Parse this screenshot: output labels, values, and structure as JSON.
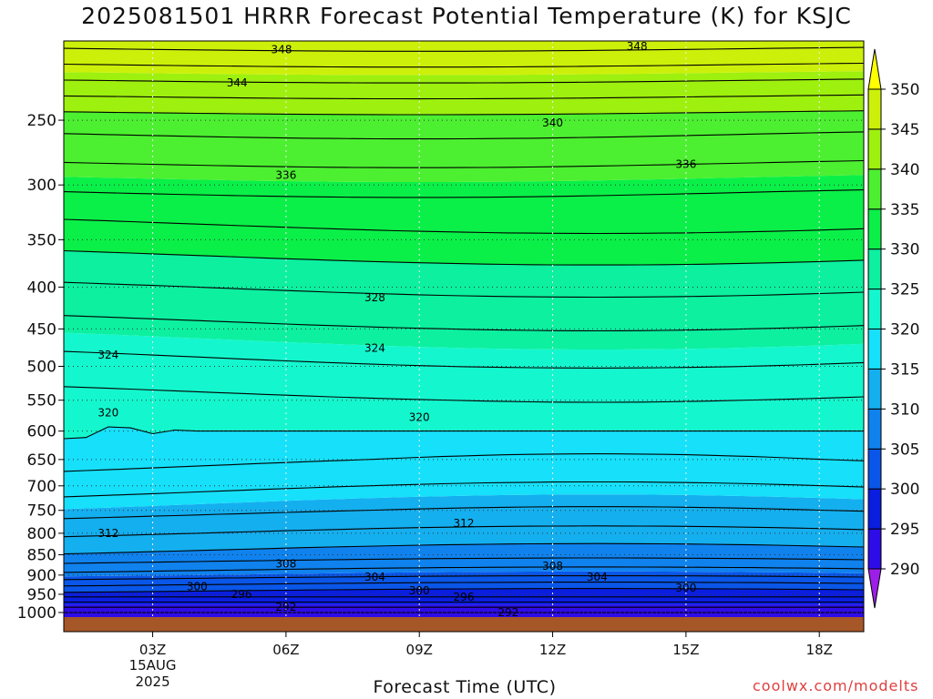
{
  "chart_data": {
    "type": "heatmap",
    "title": "2025081501 HRRR Forecast Potential Temperature (K) for KSJC",
    "xlabel": "Forecast Time (UTC)",
    "ylabel": "",
    "x_ticks": [
      "03Z",
      "06Z",
      "09Z",
      "12Z",
      "15Z",
      "18Z"
    ],
    "x_tick_hours": [
      3,
      6,
      9,
      12,
      15,
      18
    ],
    "x_date_label": [
      "15AUG",
      "2025"
    ],
    "xlim_hours": [
      1,
      19
    ],
    "y_ticks": [
      250,
      300,
      350,
      400,
      450,
      500,
      550,
      600,
      650,
      700,
      750,
      800,
      850,
      900,
      950,
      1000
    ],
    "ylim_hpa": [
      1013,
      200
    ],
    "y_scale": "log",
    "grid": "dotted",
    "colorbar": {
      "levels": [
        290,
        295,
        300,
        305,
        310,
        315,
        320,
        325,
        330,
        335,
        340,
        345,
        350
      ],
      "labels": [
        "290",
        "295",
        "300",
        "305",
        "310",
        "315",
        "320",
        "325",
        "330",
        "335",
        "340",
        "345",
        "350"
      ],
      "colors": [
        "#9c1ee8",
        "#2d0ce8",
        "#0a1ee0",
        "#0a56e8",
        "#0f82ee",
        "#14afef",
        "#16e0fa",
        "#14f7ce",
        "#0cf0a0",
        "#0af048",
        "#4cf030",
        "#9ef00f",
        "#cdf00a",
        "#ffff00",
        "#ffd400"
      ],
      "position": "right"
    },
    "contour_labels": [
      {
        "text": "348",
        "hour": 5.9,
        "hpa": 205
      },
      {
        "text": "348",
        "hour": 13.9,
        "hpa": 203
      },
      {
        "text": "344",
        "hour": 4.9,
        "hpa": 225
      },
      {
        "text": "340",
        "hour": 12.0,
        "hpa": 252
      },
      {
        "text": "336",
        "hour": 15.0,
        "hpa": 283
      },
      {
        "text": "336",
        "hour": 6.0,
        "hpa": 292
      },
      {
        "text": "328",
        "hour": 8.0,
        "hpa": 412
      },
      {
        "text": "324",
        "hour": 2.0,
        "hpa": 484
      },
      {
        "text": "324",
        "hour": 8.0,
        "hpa": 475
      },
      {
        "text": "320",
        "hour": 2.0,
        "hpa": 570
      },
      {
        "text": "320",
        "hour": 9.0,
        "hpa": 577
      },
      {
        "text": "312",
        "hour": 2.0,
        "hpa": 800
      },
      {
        "text": "312",
        "hour": 10.0,
        "hpa": 778
      },
      {
        "text": "308",
        "hour": 6.0,
        "hpa": 872
      },
      {
        "text": "308",
        "hour": 12.0,
        "hpa": 877
      },
      {
        "text": "304",
        "hour": 8.0,
        "hpa": 905
      },
      {
        "text": "304",
        "hour": 13.0,
        "hpa": 905
      },
      {
        "text": "300",
        "hour": 4.0,
        "hpa": 930
      },
      {
        "text": "300",
        "hour": 9.0,
        "hpa": 940
      },
      {
        "text": "300",
        "hour": 15.0,
        "hpa": 933
      },
      {
        "text": "296",
        "hour": 5.0,
        "hpa": 950
      },
      {
        "text": "296",
        "hour": 10.0,
        "hpa": 957
      },
      {
        "text": "292",
        "hour": 6.0,
        "hpa": 985
      },
      {
        "text": "292",
        "hour": 11.0,
        "hpa": 1000
      }
    ]
  },
  "footer": {
    "watermark": "coolwx.com/modelts"
  }
}
